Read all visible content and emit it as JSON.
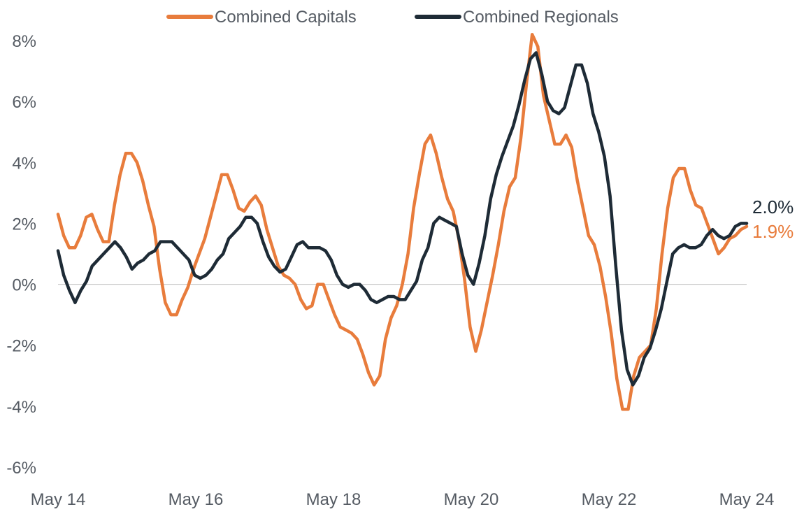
{
  "chart_data": {
    "type": "line",
    "title": "",
    "xlabel": "",
    "ylabel": "",
    "x_tick_labels": [
      "May 14",
      "May 16",
      "May 18",
      "May 20",
      "May 22",
      "May 24"
    ],
    "y_tick_labels": [
      "8%",
      "6%",
      "4%",
      "2%",
      "0%",
      "-2%",
      "-4%",
      "-6%"
    ],
    "ylim": [
      -6,
      8
    ],
    "y_unit": "%",
    "grid": false,
    "zero_line": true,
    "legend_position": "top-center",
    "colors": {
      "capitals": "#E87C3C",
      "regionals": "#1E2B36",
      "zero_line": "#c8c8c8",
      "text": "#555b63"
    },
    "series": [
      {
        "name": "Combined Capitals",
        "color": "#E87C3C",
        "end_label": "1.9%",
        "values": [
          2.3,
          1.6,
          1.2,
          1.2,
          1.6,
          2.2,
          2.3,
          1.8,
          1.4,
          1.4,
          2.6,
          3.6,
          4.3,
          4.3,
          4.0,
          3.4,
          2.6,
          1.9,
          0.5,
          -0.6,
          -1.0,
          -1.0,
          -0.5,
          -0.1,
          0.5,
          1.0,
          1.5,
          2.2,
          2.9,
          3.6,
          3.6,
          3.1,
          2.5,
          2.4,
          2.7,
          2.9,
          2.6,
          1.8,
          1.2,
          0.6,
          0.3,
          0.2,
          0.0,
          -0.5,
          -0.8,
          -0.7,
          0.0,
          0.0,
          -0.5,
          -1.0,
          -1.4,
          -1.5,
          -1.6,
          -1.8,
          -2.3,
          -2.9,
          -3.3,
          -3.0,
          -1.8,
          -1.1,
          -0.7,
          0.0,
          1.0,
          2.5,
          3.6,
          4.6,
          4.9,
          4.3,
          3.5,
          2.8,
          2.4,
          1.5,
          0.2,
          -1.4,
          -2.2,
          -1.5,
          -0.6,
          0.3,
          1.3,
          2.4,
          3.2,
          3.5,
          4.8,
          6.6,
          8.2,
          7.8,
          6.2,
          5.4,
          4.6,
          4.6,
          4.9,
          4.5,
          3.4,
          2.5,
          1.6,
          1.3,
          0.6,
          -0.4,
          -1.6,
          -3.1,
          -4.1,
          -4.1,
          -3.0,
          -2.4,
          -2.2,
          -2.0,
          -0.8,
          1.0,
          2.5,
          3.5,
          3.8,
          3.8,
          3.1,
          2.6,
          2.5,
          2.0,
          1.5,
          1.0,
          1.2,
          1.5,
          1.6,
          1.8,
          1.9
        ]
      },
      {
        "name": "Combined Regionals",
        "color": "#1E2B36",
        "end_label": "2.0%",
        "values": [
          1.1,
          0.3,
          -0.2,
          -0.6,
          -0.2,
          0.1,
          0.6,
          0.8,
          1.0,
          1.2,
          1.4,
          1.2,
          0.9,
          0.5,
          0.7,
          0.8,
          1.0,
          1.1,
          1.4,
          1.4,
          1.4,
          1.2,
          1.0,
          0.8,
          0.3,
          0.2,
          0.3,
          0.5,
          0.8,
          1.0,
          1.5,
          1.7,
          1.9,
          2.2,
          2.2,
          2.0,
          1.4,
          0.9,
          0.6,
          0.4,
          0.5,
          0.9,
          1.3,
          1.4,
          1.2,
          1.2,
          1.2,
          1.1,
          0.8,
          0.3,
          0.0,
          -0.1,
          0.0,
          0.0,
          -0.2,
          -0.5,
          -0.6,
          -0.5,
          -0.4,
          -0.4,
          -0.5,
          -0.5,
          -0.2,
          0.1,
          0.8,
          1.2,
          2.0,
          2.2,
          2.1,
          2.0,
          1.9,
          1.0,
          0.3,
          0.0,
          0.7,
          1.6,
          2.8,
          3.6,
          4.2,
          4.7,
          5.2,
          5.9,
          6.7,
          7.4,
          7.6,
          6.9,
          6.0,
          5.7,
          5.6,
          5.8,
          6.5,
          7.2,
          7.2,
          6.6,
          5.6,
          5.0,
          4.2,
          2.9,
          0.6,
          -1.5,
          -2.8,
          -3.3,
          -3.0,
          -2.4,
          -2.1,
          -1.5,
          -0.8,
          0.1,
          1.0,
          1.2,
          1.3,
          1.2,
          1.2,
          1.3,
          1.6,
          1.8,
          1.6,
          1.5,
          1.6,
          1.9,
          2.0,
          2.0
        ]
      }
    ]
  }
}
